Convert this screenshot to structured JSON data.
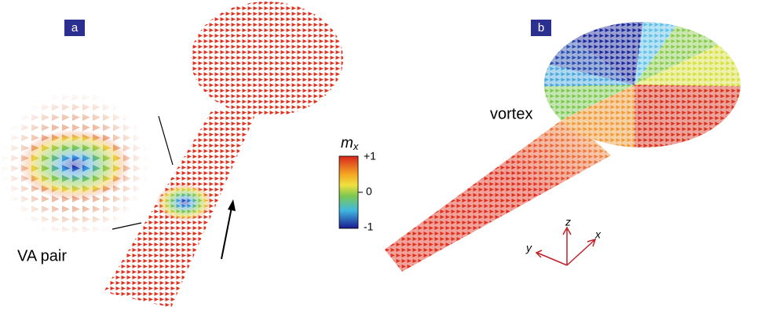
{
  "panels": [
    {
      "label": "a",
      "annotation": "VA pair"
    },
    {
      "label": "b",
      "annotation": "vortex"
    }
  ],
  "colorbar": {
    "title": "m",
    "subscript": "x",
    "ticks": [
      "+1",
      "0",
      "-1"
    ]
  },
  "axes": {
    "z": "z",
    "x": "x",
    "y": "y"
  }
}
